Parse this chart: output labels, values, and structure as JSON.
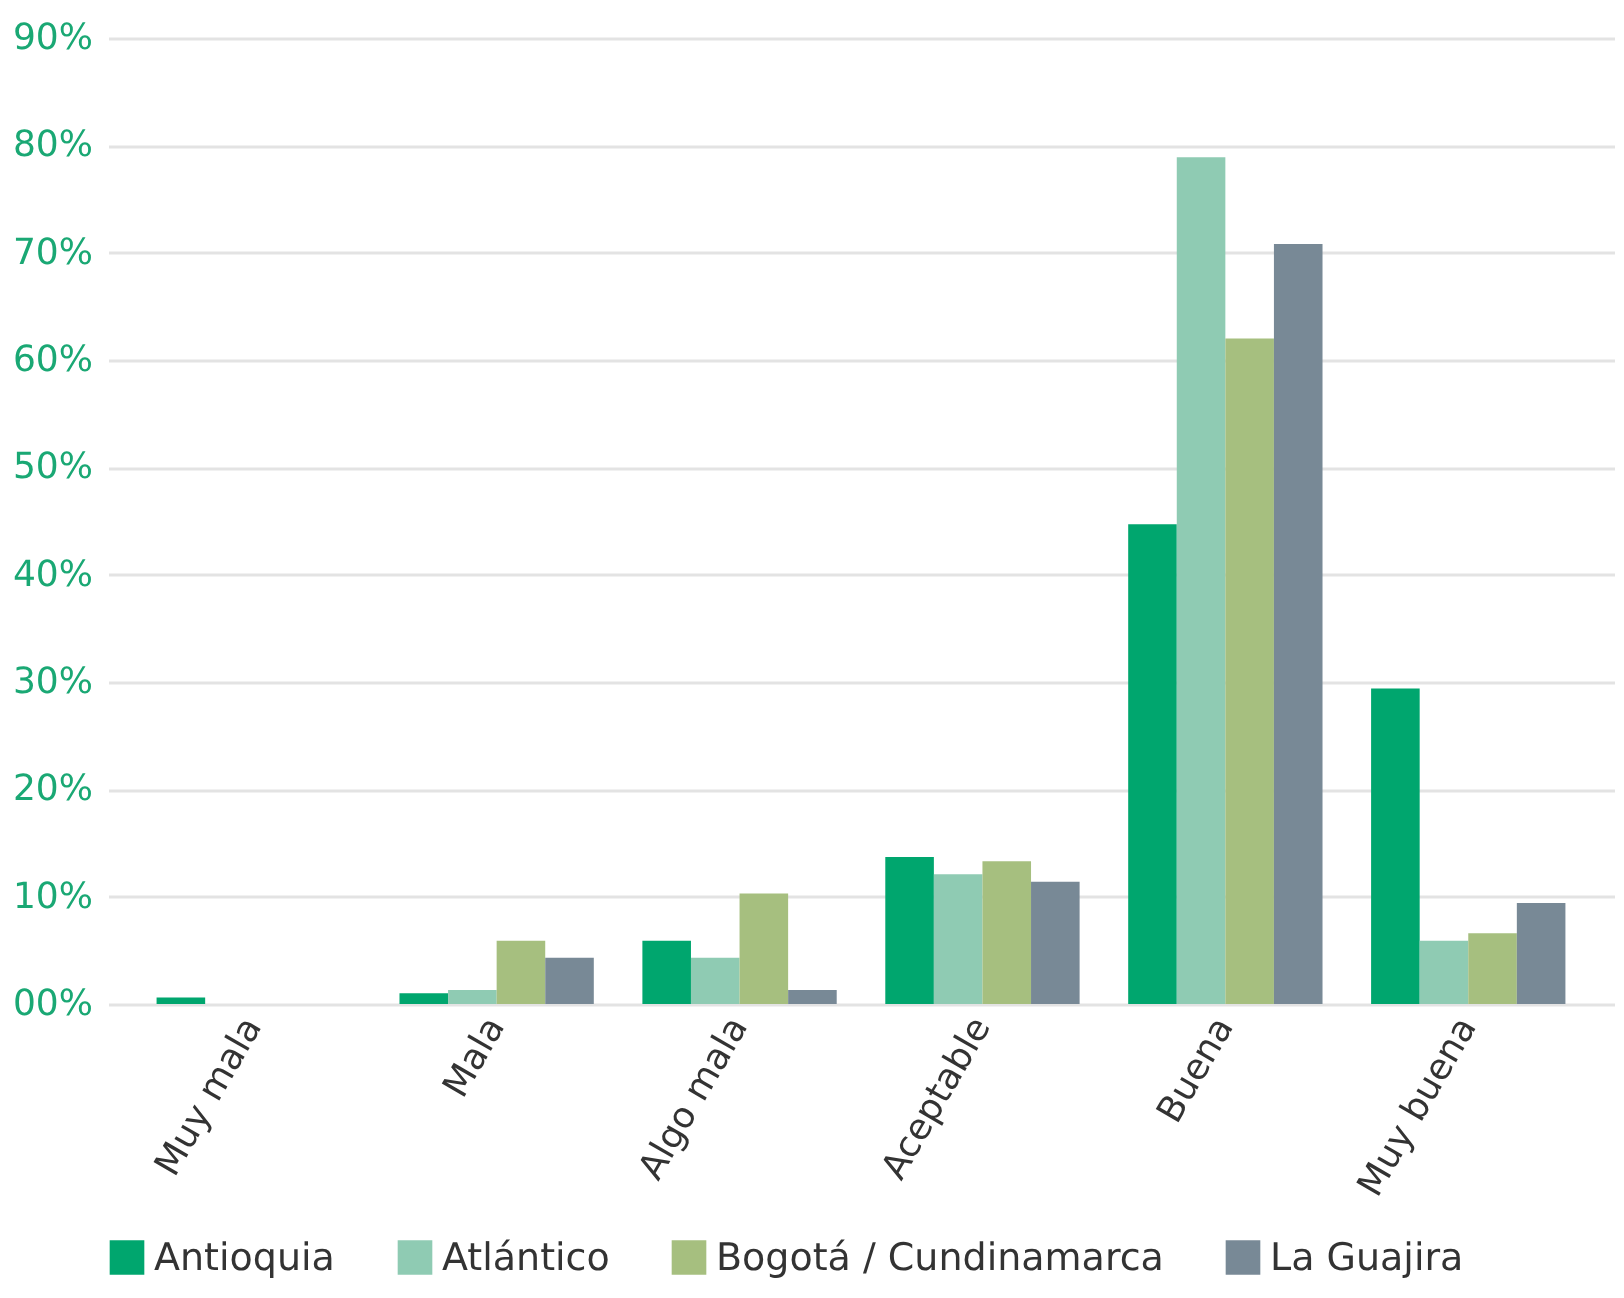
{
  "chart_data": {
    "type": "bar",
    "categories": [
      "Muy mala",
      "Mala",
      "Algo mala",
      "Aceptable",
      "Buena",
      "Muy buena"
    ],
    "series": [
      {
        "name": "Antioquia",
        "color": "#00a66e",
        "values": [
          0.6,
          1.0,
          5.9,
          13.7,
          44.7,
          29.4
        ]
      },
      {
        "name": "Atlántico",
        "color": "#8fcbb3",
        "values": [
          0,
          1.3,
          4.3,
          12.1,
          78.9,
          5.9
        ]
      },
      {
        "name": "Bogotá / Cundinamarca",
        "color": "#a6bf7f",
        "values": [
          0,
          5.9,
          10.3,
          13.3,
          62.0,
          6.6
        ]
      },
      {
        "name": "La Guajira",
        "color": "#788996",
        "values": [
          0,
          4.3,
          1.3,
          11.4,
          70.8,
          9.4
        ]
      }
    ],
    "ylim": [
      0,
      90
    ],
    "yticks": [
      {
        "value": 0,
        "label": "00%"
      },
      {
        "value": 10,
        "label": "10%"
      },
      {
        "value": 20,
        "label": "20%"
      },
      {
        "value": 30,
        "label": "30%"
      },
      {
        "value": 40,
        "label": "40%"
      },
      {
        "value": 50,
        "label": "50%"
      },
      {
        "value": 60,
        "label": "60%"
      },
      {
        "value": 70,
        "label": "70%"
      },
      {
        "value": 80,
        "label": "80%"
      },
      {
        "value": 90,
        "label": "90%"
      }
    ],
    "grid": "y",
    "legend": "bottom"
  }
}
